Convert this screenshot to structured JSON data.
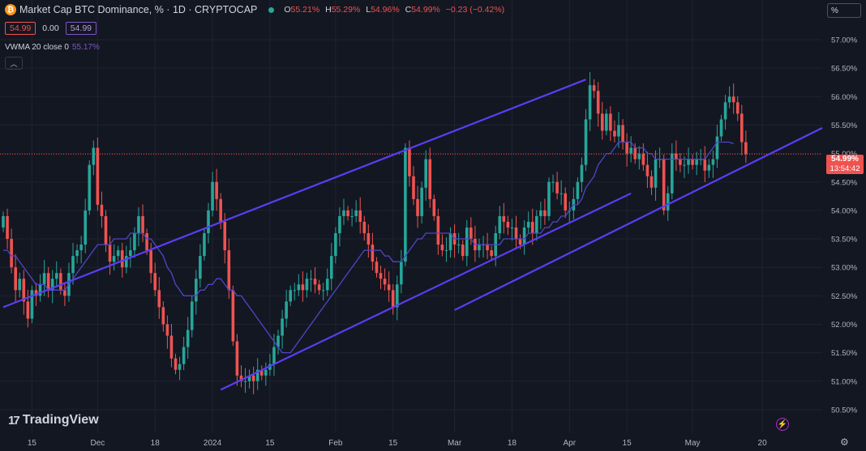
{
  "header": {
    "coin_icon": "bitcoin-icon",
    "title": "Market Cap BTC Dominance, % · 1D · CRYPTOCAP",
    "open_label": "O",
    "open": "55.21%",
    "high_label": "H",
    "high": "55.29%",
    "low_label": "L",
    "low": "54.96%",
    "close_label": "C",
    "close": "54.99%",
    "change": "−0.23 (−0.42%)"
  },
  "quote": {
    "bid": "54.99",
    "spread": "0.00",
    "ask": "54.99"
  },
  "indicator": {
    "label": "VWMA 20 close 0",
    "value": "55.17%"
  },
  "scale_button": "%",
  "current_price": {
    "value": "54.99%",
    "countdown": "13:54:42"
  },
  "brand": "TradingView",
  "colors": {
    "up": "#26a69a",
    "down": "#ef5350",
    "channel": "#5b3df5",
    "vwma": "#4f46c9",
    "background": "#131722"
  },
  "chart_data": {
    "type": "candlestick",
    "ylim": [
      50.3,
      57.35
    ],
    "y_ticks": [
      "57.00%",
      "56.50%",
      "56.00%",
      "55.50%",
      "55.00%",
      "54.50%",
      "54.00%",
      "53.50%",
      "53.00%",
      "52.50%",
      "52.00%",
      "51.50%",
      "51.00%",
      "50.50%"
    ],
    "x_ticks": [
      {
        "label": "15",
        "i": 7
      },
      {
        "label": "Dec",
        "i": 23
      },
      {
        "label": "18",
        "i": 37
      },
      {
        "label": "2024",
        "i": 51
      },
      {
        "label": "15",
        "i": 65
      },
      {
        "label": "Feb",
        "i": 81
      },
      {
        "label": "15",
        "i": 95
      },
      {
        "label": "Mar",
        "i": 110
      },
      {
        "label": "18",
        "i": 124
      },
      {
        "label": "Apr",
        "i": 138
      },
      {
        "label": "15",
        "i": 152
      },
      {
        "label": "May",
        "i": 168
      },
      {
        "label": "20",
        "i": 185
      }
    ],
    "closes": [
      53.9,
      53.5,
      53.0,
      52.6,
      52.8,
      52.4,
      52.1,
      52.6,
      52.5,
      52.7,
      52.9,
      52.6,
      52.8,
      52.9,
      52.6,
      52.5,
      52.9,
      53.2,
      53.3,
      53.4,
      54.0,
      54.8,
      55.1,
      54.1,
      53.9,
      53.4,
      53.1,
      53.2,
      53.3,
      53.0,
      53.2,
      53.3,
      53.6,
      53.9,
      53.6,
      53.3,
      52.9,
      52.6,
      52.3,
      52.0,
      51.8,
      51.4,
      51.2,
      51.3,
      51.6,
      51.9,
      52.4,
      52.8,
      53.2,
      53.6,
      54.0,
      54.5,
      54.2,
      53.8,
      53.3,
      52.6,
      51.7,
      51.1,
      51.0,
      51.0,
      51.1,
      51.0,
      51.2,
      51.1,
      51.2,
      51.3,
      51.6,
      51.8,
      52.1,
      52.4,
      52.6,
      52.6,
      52.7,
      52.6,
      52.8,
      52.8,
      52.7,
      52.6,
      52.6,
      52.8,
      53.2,
      53.6,
      53.9,
      54.0,
      53.9,
      53.9,
      54.0,
      53.8,
      53.6,
      53.4,
      53.1,
      52.9,
      52.8,
      52.7,
      52.6,
      52.3,
      52.7,
      53.1,
      55.1,
      54.6,
      54.2,
      53.9,
      54.4,
      54.9,
      54.2,
      53.9,
      53.4,
      53.3,
      53.3,
      53.6,
      53.4,
      53.4,
      53.2,
      53.7,
      53.5,
      53.3,
      53.4,
      53.4,
      53.3,
      53.2,
      53.6,
      53.9,
      53.8,
      53.7,
      53.7,
      53.5,
      53.4,
      53.7,
      53.8,
      53.6,
      53.9,
      54.0,
      53.9,
      54.5,
      54.5,
      54.3,
      54.3,
      54.0,
      54.0,
      54.2,
      54.5,
      54.8,
      55.6,
      56.2,
      56.1,
      55.7,
      55.4,
      55.7,
      55.4,
      55.3,
      55.5,
      55.2,
      55.0,
      55.1,
      54.9,
      55.0,
      54.8,
      54.6,
      54.4,
      54.9,
      54.9,
      54.0,
      54.3,
      55.0,
      54.9,
      54.8,
      54.8,
      54.9,
      54.8,
      54.9,
      54.9,
      54.7,
      54.8,
      54.9,
      55.3,
      55.6,
      55.9,
      56.0,
      55.9,
      55.7,
      55.2,
      54.99
    ],
    "vwma": [
      53.3,
      53.3,
      53.2,
      53.2,
      53.1,
      53.0,
      52.9,
      52.8,
      52.7,
      52.7,
      52.7,
      52.6,
      52.6,
      52.6,
      52.6,
      52.6,
      52.7,
      52.8,
      52.9,
      53.0,
      53.1,
      53.2,
      53.3,
      53.4,
      53.4,
      53.4,
      53.4,
      53.5,
      53.5,
      53.5,
      53.5,
      53.6,
      53.6,
      53.6,
      53.6,
      53.5,
      53.5,
      53.4,
      53.3,
      53.2,
      53.0,
      52.9,
      52.7,
      52.6,
      52.5,
      52.5,
      52.5,
      52.5,
      52.6,
      52.6,
      52.7,
      52.7,
      52.8,
      52.8,
      52.7,
      52.6,
      52.6,
      52.5,
      52.5,
      52.4,
      52.3,
      52.2,
      52.1,
      52.0,
      51.9,
      51.8,
      51.7,
      51.6,
      51.5,
      51.5,
      51.5,
      51.6,
      51.7,
      51.8,
      51.9,
      52.0,
      52.1,
      52.2,
      52.3,
      52.4,
      52.5,
      52.6,
      52.7,
      52.8,
      52.9,
      53.0,
      53.1,
      53.2,
      53.3,
      53.3,
      53.3,
      53.3,
      53.3,
      53.2,
      53.2,
      53.1,
      53.1,
      53.1,
      53.2,
      53.3,
      53.4,
      53.5,
      53.5,
      53.6,
      53.6,
      53.6,
      53.6,
      53.6,
      53.6,
      53.6,
      53.5,
      53.5,
      53.5,
      53.5,
      53.5,
      53.4,
      53.4,
      53.4,
      53.4,
      53.4,
      53.4,
      53.4,
      53.5,
      53.5,
      53.5,
      53.5,
      53.5,
      53.5,
      53.6,
      53.6,
      53.6,
      53.6,
      53.7,
      53.7,
      53.8,
      53.8,
      53.9,
      53.9,
      54.0,
      54.1,
      54.1,
      54.2,
      54.4,
      54.5,
      54.6,
      54.8,
      54.9,
      55.0,
      55.0,
      55.1,
      55.2,
      55.2,
      55.2,
      55.2,
      55.1,
      55.1,
      55.1,
      55.0,
      55.0,
      54.9,
      54.9,
      54.9,
      54.9,
      54.9,
      54.9,
      54.9,
      54.9,
      54.9,
      54.9,
      54.9,
      54.9,
      54.9,
      55.0,
      55.1,
      55.2,
      55.2,
      55.2,
      55.2,
      55.17
    ],
    "channel_upper": [
      [
        0,
        52.3
      ],
      [
        142,
        56.3
      ]
    ],
    "channel_lower_dec": [
      [
        53,
        50.85
      ],
      [
        153,
        54.3
      ]
    ],
    "channel_lower_inc": [
      [
        110,
        52.25
      ],
      [
        200,
        55.45
      ]
    ]
  }
}
